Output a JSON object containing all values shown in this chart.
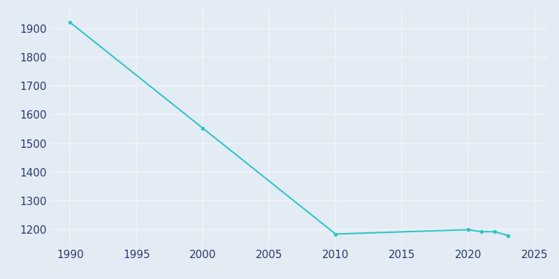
{
  "years": [
    1990,
    2000,
    2010,
    2020,
    2021,
    2022,
    2023
  ],
  "population": [
    1921,
    1553,
    1185,
    1200,
    1193,
    1193,
    1180
  ],
  "line_color": "#2EC5C5",
  "marker": "o",
  "marker_size": 3,
  "line_width": 1.5,
  "background_color": "#E3EBF4",
  "plot_bg_color": "#E3EBF4",
  "grid_color": "#F0F4F8",
  "xlim": [
    1988.5,
    2026
  ],
  "ylim": [
    1145,
    1970
  ],
  "xticks": [
    1990,
    1995,
    2000,
    2005,
    2010,
    2015,
    2020,
    2025
  ],
  "yticks": [
    1200,
    1300,
    1400,
    1500,
    1600,
    1700,
    1800,
    1900
  ],
  "tick_label_color": "#2B3A6B",
  "tick_fontsize": 11,
  "spine_visible": false
}
